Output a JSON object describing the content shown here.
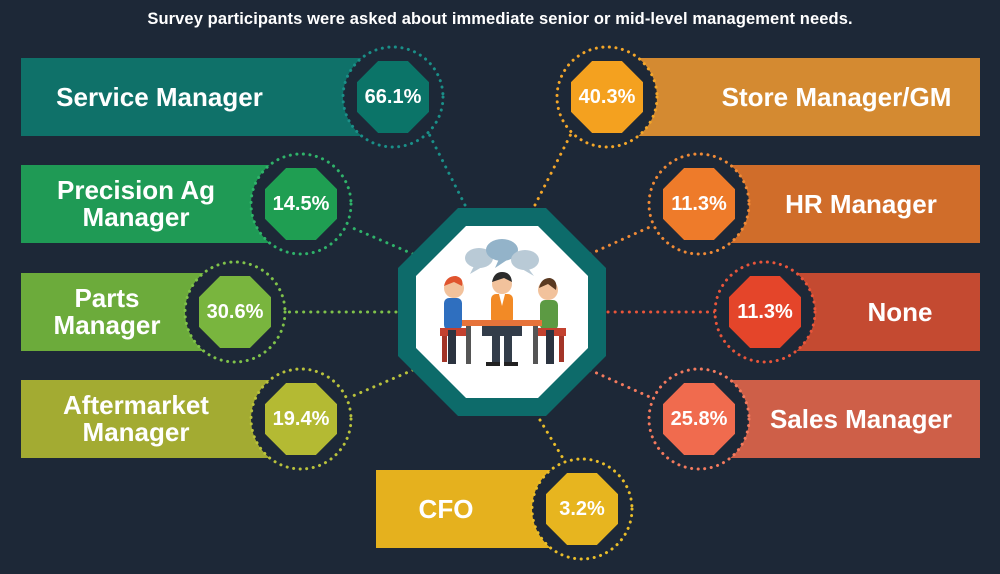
{
  "title": "Survey participants were asked about immediate senior or mid-level management needs.",
  "colors": {
    "background": "#1d2837",
    "hub_ring": "#0d6b6a",
    "hub_inner": "#ffffff"
  },
  "items": [
    {
      "label": "Service Manager",
      "pct": "66.1%",
      "banner_color": "#0f7169",
      "badge_color": "#0b7468",
      "dot_color": "#1a8f88"
    },
    {
      "label": "Precision Ag Manager",
      "pct": "14.5%",
      "banner_color": "#1f9a55",
      "badge_color": "#1f9e52",
      "dot_color": "#2fb36a"
    },
    {
      "label": "Parts Manager",
      "pct": "30.6%",
      "banner_color": "#6cab3b",
      "badge_color": "#79b53e",
      "dot_color": "#7fc24a"
    },
    {
      "label": "Aftermarket Manager",
      "pct": "19.4%",
      "banner_color": "#a3ab32",
      "badge_color": "#b4ba33",
      "dot_color": "#b9c23c"
    },
    {
      "label": "CFO",
      "pct": "3.2%",
      "banner_color": "#e5b11e",
      "badge_color": "#e7b51f",
      "dot_color": "#e9bd2a"
    },
    {
      "label": "Store Manager/GM",
      "pct": "40.3%",
      "banner_color": "#d48a31",
      "badge_color": "#f4a11f",
      "dot_color": "#f3a629"
    },
    {
      "label": "HR Manager",
      "pct": "11.3%",
      "banner_color": "#d06d2a",
      "badge_color": "#ee7b2a",
      "dot_color": "#ef8a36"
    },
    {
      "label": "None",
      "pct": "11.3%",
      "banner_color": "#c44a31",
      "badge_color": "#e4452a",
      "dot_color": "#e9553a"
    },
    {
      "label": "Sales Manager",
      "pct": "25.8%",
      "banner_color": "#ce5f48",
      "badge_color": "#f06b4e",
      "dot_color": "#f37a5e"
    }
  ]
}
